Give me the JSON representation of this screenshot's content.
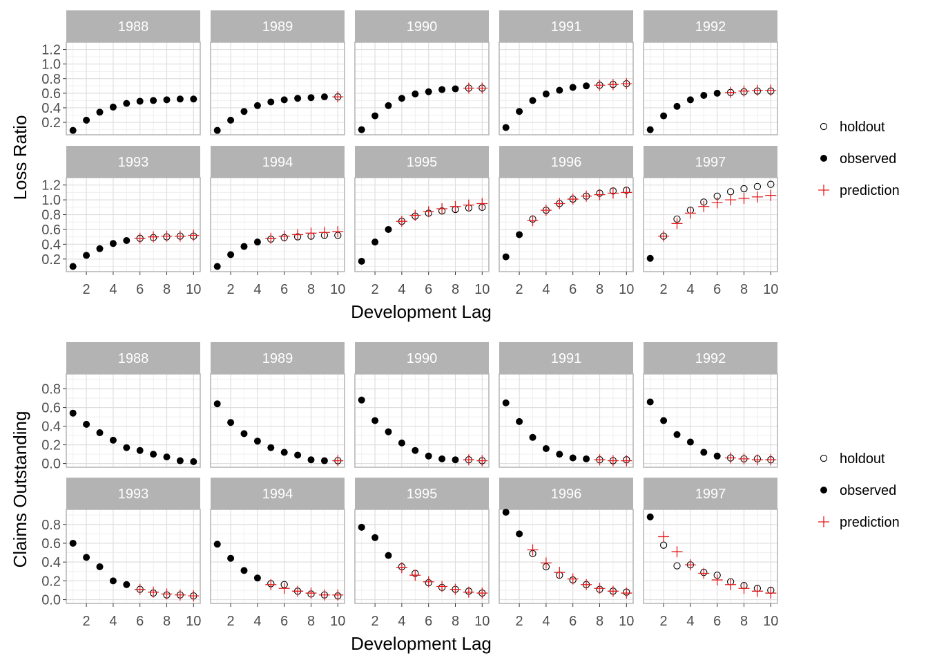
{
  "chart_data": [
    {
      "type": "scatter",
      "facet_by": "accident_year",
      "facets": [
        "1988",
        "1989",
        "1990",
        "1991",
        "1992",
        "1993",
        "1994",
        "1995",
        "1996",
        "1997"
      ],
      "xlabel": "Development Lag",
      "ylabel": "Loss Ratio",
      "xlim": [
        0.5,
        10.5
      ],
      "ylim": [
        0.03,
        1.3
      ],
      "x_ticks": [
        2,
        4,
        6,
        8,
        10
      ],
      "x_tick_labels": [
        "2",
        "4",
        "6",
        "8",
        "10"
      ],
      "y_ticks": [
        0.2,
        0.4,
        0.6,
        0.8,
        1.0,
        1.2
      ],
      "y_tick_labels": [
        "0.2",
        "0.4",
        "0.6",
        "0.8",
        "1.0",
        "1.2"
      ],
      "grid": true,
      "legend_placement": "right",
      "legend": [
        "holdout",
        "observed",
        "prediction"
      ],
      "colors": {
        "observed": "#000000",
        "holdout": "#000000",
        "prediction": "#e41a1c",
        "strip": "#b3b3b3",
        "grid": "#dedede"
      },
      "data": {
        "1988": {
          "observed": [
            0.09,
            0.23,
            0.34,
            0.41,
            0.46,
            0.49,
            0.5,
            0.51,
            0.52,
            0.52
          ],
          "holdout": [],
          "prediction": []
        },
        "1989": {
          "observed": [
            0.09,
            0.23,
            0.35,
            0.43,
            0.48,
            0.51,
            0.53,
            0.54,
            0.55
          ],
          "holdout": [
            [
              10,
              0.55
            ]
          ],
          "prediction": [
            [
              10,
              0.55
            ]
          ]
        },
        "1990": {
          "observed": [
            0.1,
            0.29,
            0.43,
            0.53,
            0.59,
            0.62,
            0.65,
            0.66
          ],
          "holdout": [
            [
              9,
              0.67
            ],
            [
              10,
              0.67
            ]
          ],
          "prediction": [
            [
              9,
              0.67
            ],
            [
              10,
              0.67
            ]
          ]
        },
        "1991": {
          "observed": [
            0.13,
            0.35,
            0.5,
            0.59,
            0.64,
            0.68,
            0.7
          ],
          "holdout": [
            [
              8,
              0.71
            ],
            [
              9,
              0.72
            ],
            [
              10,
              0.73
            ]
          ],
          "prediction": [
            [
              8,
              0.71
            ],
            [
              9,
              0.72
            ],
            [
              10,
              0.73
            ]
          ]
        },
        "1992": {
          "observed": [
            0.1,
            0.29,
            0.42,
            0.51,
            0.57,
            0.6
          ],
          "holdout": [
            [
              7,
              0.61
            ],
            [
              8,
              0.62
            ],
            [
              9,
              0.63
            ],
            [
              10,
              0.63
            ]
          ],
          "prediction": [
            [
              7,
              0.61
            ],
            [
              8,
              0.63
            ],
            [
              9,
              0.64
            ],
            [
              10,
              0.64
            ]
          ]
        },
        "1993": {
          "observed": [
            0.1,
            0.25,
            0.34,
            0.41,
            0.45
          ],
          "holdout": [
            [
              6,
              0.48
            ],
            [
              7,
              0.49
            ],
            [
              8,
              0.5
            ],
            [
              9,
              0.51
            ],
            [
              10,
              0.51
            ]
          ],
          "prediction": [
            [
              6,
              0.48
            ],
            [
              7,
              0.5
            ],
            [
              8,
              0.51
            ],
            [
              9,
              0.51
            ],
            [
              10,
              0.52
            ]
          ]
        },
        "1994": {
          "observed": [
            0.1,
            0.26,
            0.37,
            0.43
          ],
          "holdout": [
            [
              5,
              0.47
            ],
            [
              6,
              0.49
            ],
            [
              7,
              0.5
            ],
            [
              8,
              0.51
            ],
            [
              9,
              0.52
            ],
            [
              10,
              0.52
            ]
          ],
          "prediction": [
            [
              5,
              0.48
            ],
            [
              6,
              0.51
            ],
            [
              7,
              0.53
            ],
            [
              8,
              0.55
            ],
            [
              9,
              0.56
            ],
            [
              10,
              0.57
            ]
          ]
        },
        "1995": {
          "observed": [
            0.17,
            0.43,
            0.6
          ],
          "holdout": [
            [
              4,
              0.71
            ],
            [
              5,
              0.78
            ],
            [
              6,
              0.82
            ],
            [
              7,
              0.85
            ],
            [
              8,
              0.87
            ],
            [
              9,
              0.89
            ],
            [
              10,
              0.9
            ]
          ],
          "prediction": [
            [
              4,
              0.71
            ],
            [
              5,
              0.79
            ],
            [
              6,
              0.84
            ],
            [
              7,
              0.88
            ],
            [
              8,
              0.91
            ],
            [
              9,
              0.93
            ],
            [
              10,
              0.95
            ]
          ]
        },
        "1996": {
          "observed": [
            0.23,
            0.53
          ],
          "holdout": [
            [
              3,
              0.74
            ],
            [
              4,
              0.86
            ],
            [
              5,
              0.95
            ],
            [
              6,
              1.01
            ],
            [
              7,
              1.05
            ],
            [
              8,
              1.09
            ],
            [
              9,
              1.12
            ],
            [
              10,
              1.13
            ]
          ],
          "prediction": [
            [
              3,
              0.72
            ],
            [
              4,
              0.86
            ],
            [
              5,
              0.95
            ],
            [
              6,
              1.01
            ],
            [
              7,
              1.05
            ],
            [
              8,
              1.07
            ],
            [
              9,
              1.09
            ],
            [
              10,
              1.1
            ]
          ]
        },
        "1997": {
          "observed": [
            0.21
          ],
          "holdout": [
            [
              2,
              0.51
            ],
            [
              3,
              0.74
            ],
            [
              4,
              0.86
            ],
            [
              5,
              0.97
            ],
            [
              6,
              1.05
            ],
            [
              7,
              1.11
            ],
            [
              8,
              1.15
            ],
            [
              9,
              1.18
            ],
            [
              10,
              1.21
            ]
          ],
          "prediction": [
            [
              2,
              0.51
            ],
            [
              3,
              0.68
            ],
            [
              4,
              0.82
            ],
            [
              5,
              0.91
            ],
            [
              6,
              0.96
            ],
            [
              7,
              1.0
            ],
            [
              8,
              1.02
            ],
            [
              9,
              1.04
            ],
            [
              10,
              1.06
            ]
          ]
        }
      }
    },
    {
      "type": "scatter",
      "facet_by": "accident_year",
      "facets": [
        "1988",
        "1989",
        "1990",
        "1991",
        "1992",
        "1993",
        "1994",
        "1995",
        "1996",
        "1997"
      ],
      "xlabel": "Development Lag",
      "ylabel": "Claims Outstanding",
      "xlim": [
        0.5,
        10.5
      ],
      "ylim": [
        -0.04,
        0.96
      ],
      "x_ticks": [
        2,
        4,
        6,
        8,
        10
      ],
      "x_tick_labels": [
        "2",
        "4",
        "6",
        "8",
        "10"
      ],
      "y_ticks": [
        0.0,
        0.2,
        0.4,
        0.6,
        0.8
      ],
      "y_tick_labels": [
        "0.0",
        "0.2",
        "0.4",
        "0.6",
        "0.8"
      ],
      "grid": true,
      "legend_placement": "right",
      "legend": [
        "holdout",
        "observed",
        "prediction"
      ],
      "colors": {
        "observed": "#000000",
        "holdout": "#000000",
        "prediction": "#e41a1c",
        "strip": "#b3b3b3",
        "grid": "#dedede"
      },
      "data": {
        "1988": {
          "observed": [
            0.54,
            0.42,
            0.33,
            0.25,
            0.17,
            0.14,
            0.1,
            0.07,
            0.03,
            0.02
          ],
          "holdout": [],
          "prediction": []
        },
        "1989": {
          "observed": [
            0.64,
            0.44,
            0.32,
            0.24,
            0.17,
            0.12,
            0.09,
            0.04,
            0.03
          ],
          "holdout": [
            [
              10,
              0.03
            ]
          ],
          "prediction": [
            [
              10,
              0.03
            ]
          ]
        },
        "1990": {
          "observed": [
            0.68,
            0.46,
            0.34,
            0.22,
            0.14,
            0.08,
            0.05,
            0.04
          ],
          "holdout": [
            [
              9,
              0.04
            ],
            [
              10,
              0.03
            ]
          ],
          "prediction": [
            [
              9,
              0.04
            ],
            [
              10,
              0.03
            ]
          ]
        },
        "1991": {
          "observed": [
            0.65,
            0.45,
            0.28,
            0.16,
            0.1,
            0.06,
            0.05
          ],
          "holdout": [
            [
              8,
              0.04
            ],
            [
              9,
              0.03
            ],
            [
              10,
              0.04
            ]
          ],
          "prediction": [
            [
              8,
              0.04
            ],
            [
              9,
              0.03
            ],
            [
              10,
              0.03
            ]
          ]
        },
        "1992": {
          "observed": [
            0.66,
            0.46,
            0.31,
            0.23,
            0.12,
            0.08
          ],
          "holdout": [
            [
              7,
              0.06
            ],
            [
              8,
              0.05
            ],
            [
              9,
              0.05
            ],
            [
              10,
              0.04
            ]
          ],
          "prediction": [
            [
              7,
              0.06
            ],
            [
              8,
              0.05
            ],
            [
              9,
              0.04
            ],
            [
              10,
              0.04
            ]
          ]
        },
        "1993": {
          "observed": [
            0.6,
            0.45,
            0.35,
            0.2,
            0.16
          ],
          "holdout": [
            [
              6,
              0.11
            ],
            [
              7,
              0.07
            ],
            [
              8,
              0.05
            ],
            [
              9,
              0.05
            ],
            [
              10,
              0.04
            ]
          ],
          "prediction": [
            [
              6,
              0.11
            ],
            [
              7,
              0.08
            ],
            [
              8,
              0.06
            ],
            [
              9,
              0.05
            ],
            [
              10,
              0.04
            ]
          ]
        },
        "1994": {
          "observed": [
            0.59,
            0.44,
            0.31,
            0.23
          ],
          "holdout": [
            [
              5,
              0.17
            ],
            [
              6,
              0.16
            ],
            [
              7,
              0.09
            ],
            [
              8,
              0.06
            ],
            [
              9,
              0.05
            ],
            [
              10,
              0.04
            ]
          ],
          "prediction": [
            [
              5,
              0.16
            ],
            [
              6,
              0.12
            ],
            [
              7,
              0.09
            ],
            [
              8,
              0.07
            ],
            [
              9,
              0.05
            ],
            [
              10,
              0.05
            ]
          ]
        },
        "1995": {
          "observed": [
            0.77,
            0.66,
            0.47
          ],
          "holdout": [
            [
              4,
              0.35
            ],
            [
              5,
              0.28
            ],
            [
              6,
              0.18
            ],
            [
              7,
              0.13
            ],
            [
              8,
              0.11
            ],
            [
              9,
              0.09
            ],
            [
              10,
              0.07
            ]
          ],
          "prediction": [
            [
              4,
              0.34
            ],
            [
              5,
              0.26
            ],
            [
              6,
              0.19
            ],
            [
              7,
              0.14
            ],
            [
              8,
              0.11
            ],
            [
              9,
              0.08
            ],
            [
              10,
              0.07
            ]
          ]
        },
        "1996": {
          "observed": [
            0.93,
            0.7
          ],
          "holdout": [
            [
              3,
              0.49
            ],
            [
              4,
              0.35
            ],
            [
              5,
              0.26
            ],
            [
              6,
              0.21
            ],
            [
              7,
              0.16
            ],
            [
              8,
              0.11
            ],
            [
              9,
              0.09
            ],
            [
              10,
              0.08
            ]
          ],
          "prediction": [
            [
              3,
              0.53
            ],
            [
              4,
              0.39
            ],
            [
              5,
              0.29
            ],
            [
              6,
              0.22
            ],
            [
              7,
              0.16
            ],
            [
              8,
              0.12
            ],
            [
              9,
              0.09
            ],
            [
              10,
              0.07
            ]
          ]
        },
        "1997": {
          "observed": [
            0.88
          ],
          "holdout": [
            [
              2,
              0.58
            ],
            [
              3,
              0.36
            ],
            [
              4,
              0.37
            ],
            [
              5,
              0.29
            ],
            [
              6,
              0.26
            ],
            [
              7,
              0.19
            ],
            [
              8,
              0.15
            ],
            [
              9,
              0.12
            ],
            [
              10,
              0.1
            ]
          ],
          "prediction": [
            [
              2,
              0.67
            ],
            [
              3,
              0.51
            ],
            [
              4,
              0.37
            ],
            [
              5,
              0.28
            ],
            [
              6,
              0.21
            ],
            [
              7,
              0.16
            ],
            [
              8,
              0.12
            ],
            [
              9,
              0.09
            ],
            [
              10,
              0.07
            ]
          ]
        }
      }
    }
  ]
}
